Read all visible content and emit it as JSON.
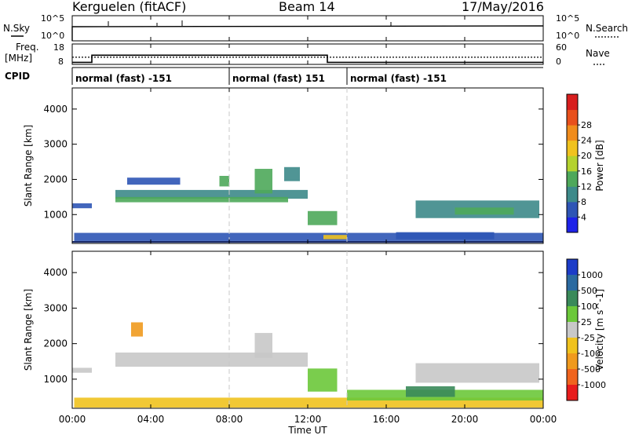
{
  "header": {
    "station": "Kerguelen (fitACF)",
    "beam": "Beam 14",
    "date": "17/May/2016"
  },
  "noise_panel": {
    "left_label": "N.Sky",
    "right_label": "N.Search",
    "ticks_left": [
      "10^5",
      "10^0"
    ],
    "ticks_right": [
      "10^5",
      "10^0"
    ]
  },
  "freq_panel": {
    "left_label_top": "Freq.",
    "left_label_unit": "[MHz]",
    "right_label": "Nave",
    "ticks_left": [
      "18",
      "8"
    ],
    "ticks_right": [
      "60",
      "0"
    ],
    "freq_steps": [
      {
        "from": 0,
        "to": 1.0,
        "value": 9.0
      },
      {
        "from": 1.0,
        "to": 13.0,
        "value": 12.5
      },
      {
        "from": 13.0,
        "to": 24.0,
        "value": 9.0
      }
    ],
    "nave_level": 11.5
  },
  "cpid_panel": {
    "label": "CPID",
    "segments": [
      {
        "start": 0.0,
        "text": "normal (fast) -151"
      },
      {
        "start": 8.0,
        "text": "normal (fast) 151"
      },
      {
        "start": 14.0,
        "text": "normal (fast) -151"
      }
    ]
  },
  "time_axis": {
    "label": "Time UT",
    "ticks": [
      "00:00",
      "04:00",
      "08:00",
      "12:00",
      "16:00",
      "20:00",
      "00:00"
    ]
  },
  "chart_data": [
    {
      "type": "heatmap",
      "title": "",
      "xlabel": "Time UT",
      "ylabel": "Slant Range [km]",
      "xlim": [
        0,
        24
      ],
      "ylim": [
        180,
        4600
      ],
      "yticks": [
        "1000",
        "2000",
        "3000",
        "4000"
      ],
      "colorbar": {
        "label": "Power [dB]",
        "ticks": [
          "4",
          "8",
          "12",
          "16",
          "20",
          "24",
          "28"
        ],
        "colors": [
          "#1e22e8",
          "#2e55b5",
          "#3d8a8a",
          "#4ea85a",
          "#b4d22e",
          "#f0c21e",
          "#f08c1c",
          "#e8501c",
          "#d81e1e"
        ]
      },
      "regions": [
        {
          "t0": 0.1,
          "t1": 24.0,
          "r0": 200,
          "r1": 260,
          "value": 4
        },
        {
          "t0": 0.1,
          "t1": 24.0,
          "r0": 260,
          "r1": 480,
          "value": 6
        },
        {
          "t0": 0.0,
          "t1": 1.0,
          "r0": 1180,
          "r1": 1320,
          "value": 6
        },
        {
          "t0": 2.2,
          "t1": 12.0,
          "r0": 1450,
          "r1": 1700,
          "value": 9
        },
        {
          "t0": 2.2,
          "t1": 11.0,
          "r0": 1350,
          "r1": 1500,
          "value": 12
        },
        {
          "t0": 2.8,
          "t1": 5.5,
          "r0": 1850,
          "r1": 2050,
          "value": 7
        },
        {
          "t0": 9.3,
          "t1": 10.2,
          "r0": 1600,
          "r1": 2300,
          "value": 14
        },
        {
          "t0": 10.8,
          "t1": 11.6,
          "r0": 1950,
          "r1": 2350,
          "value": 8
        },
        {
          "t0": 7.5,
          "t1": 8.0,
          "r0": 1800,
          "r1": 2100,
          "value": 13
        },
        {
          "t0": 12.0,
          "t1": 13.5,
          "r0": 700,
          "r1": 1100,
          "value": 12
        },
        {
          "t0": 12.8,
          "t1": 14.0,
          "r0": 300,
          "r1": 420,
          "value": 18
        },
        {
          "t0": 16.5,
          "t1": 21.5,
          "r0": 300,
          "r1": 500,
          "value": 6
        },
        {
          "t0": 17.5,
          "t1": 23.8,
          "r0": 900,
          "r1": 1400,
          "value": 10
        },
        {
          "t0": 19.5,
          "t1": 22.5,
          "r0": 1000,
          "r1": 1200,
          "value": 14
        }
      ]
    },
    {
      "type": "heatmap",
      "title": "",
      "xlabel": "Time UT",
      "ylabel": "Slant Range [km]",
      "xlim": [
        0,
        24
      ],
      "ylim": [
        180,
        4600
      ],
      "yticks": [
        "1000",
        "2000",
        "3000",
        "4000"
      ],
      "colorbar": {
        "label": "Velocity [m s^-1]",
        "ticks": [
          "1000",
          "500",
          "100",
          "25",
          "-25",
          "-100",
          "-500",
          "-1000"
        ],
        "colors": [
          "#1c3cc8",
          "#2b6aa0",
          "#3a8a5a",
          "#6cc83a",
          "#c8c8c8",
          "#f0c21e",
          "#f09a1e",
          "#f0641e",
          "#e81c1c"
        ]
      },
      "regions": [
        {
          "t0": 0.1,
          "t1": 24.0,
          "r0": 200,
          "r1": 480,
          "value": -60
        },
        {
          "t0": 0.0,
          "t1": 1.0,
          "r0": 1180,
          "r1": 1320,
          "value": 0
        },
        {
          "t0": 2.2,
          "t1": 12.0,
          "r0": 1350,
          "r1": 1750,
          "value": 0
        },
        {
          "t0": 3.0,
          "t1": 3.6,
          "r0": 2200,
          "r1": 2600,
          "value": -300
        },
        {
          "t0": 9.3,
          "t1": 10.2,
          "r0": 1600,
          "r1": 2300,
          "value": 0
        },
        {
          "t0": 12.0,
          "t1": 13.5,
          "r0": 650,
          "r1": 1300,
          "value": 60
        },
        {
          "t0": 14.0,
          "t1": 24.0,
          "r0": 400,
          "r1": 700,
          "value": 80
        },
        {
          "t0": 17.5,
          "t1": 23.8,
          "r0": 900,
          "r1": 1450,
          "value": 0
        },
        {
          "t0": 17.0,
          "t1": 19.5,
          "r0": 500,
          "r1": 800,
          "value": 150
        }
      ]
    }
  ]
}
